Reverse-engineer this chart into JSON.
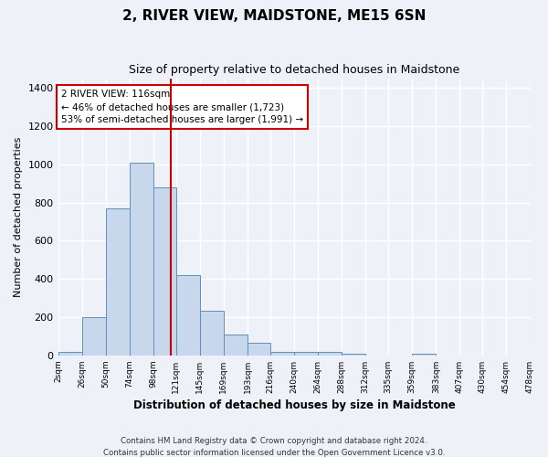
{
  "title": "2, RIVER VIEW, MAIDSTONE, ME15 6SN",
  "subtitle": "Size of property relative to detached houses in Maidstone",
  "xlabel": "Distribution of detached houses by size in Maidstone",
  "ylabel": "Number of detached properties",
  "footer_line1": "Contains HM Land Registry data © Crown copyright and database right 2024.",
  "footer_line2": "Contains public sector information licensed under the Open Government Licence v3.0.",
  "annotation_line1": "2 RIVER VIEW: 116sqm",
  "annotation_line2": "← 46% of detached houses are smaller (1,723)",
  "annotation_line3": "53% of semi-detached houses are larger (1,991) →",
  "property_size": 116,
  "bar_color": "#c8d8ec",
  "bar_edge_color": "#6090b8",
  "vline_color": "#cc0000",
  "annotation_box_color": "#ffffff",
  "annotation_box_edge": "#cc0000",
  "background_color": "#eef2f8",
  "grid_color": "#ffffff",
  "bin_edges": [
    2,
    26,
    50,
    74,
    98,
    121,
    145,
    169,
    193,
    216,
    240,
    264,
    288,
    312,
    335,
    359,
    383,
    407,
    430,
    454,
    478
  ],
  "bin_labels": [
    "2sqm",
    "26sqm",
    "50sqm",
    "74sqm",
    "98sqm",
    "121sqm",
    "145sqm",
    "169sqm",
    "193sqm",
    "216sqm",
    "240sqm",
    "264sqm",
    "288sqm",
    "312sqm",
    "335sqm",
    "359sqm",
    "383sqm",
    "407sqm",
    "430sqm",
    "454sqm",
    "478sqm"
  ],
  "bar_heights": [
    20,
    200,
    770,
    1010,
    880,
    420,
    235,
    108,
    65,
    20,
    18,
    18,
    10,
    0,
    0,
    8,
    0,
    0,
    0,
    0
  ],
  "ylim": [
    0,
    1450
  ],
  "yticks": [
    0,
    200,
    400,
    600,
    800,
    1000,
    1200,
    1400
  ]
}
